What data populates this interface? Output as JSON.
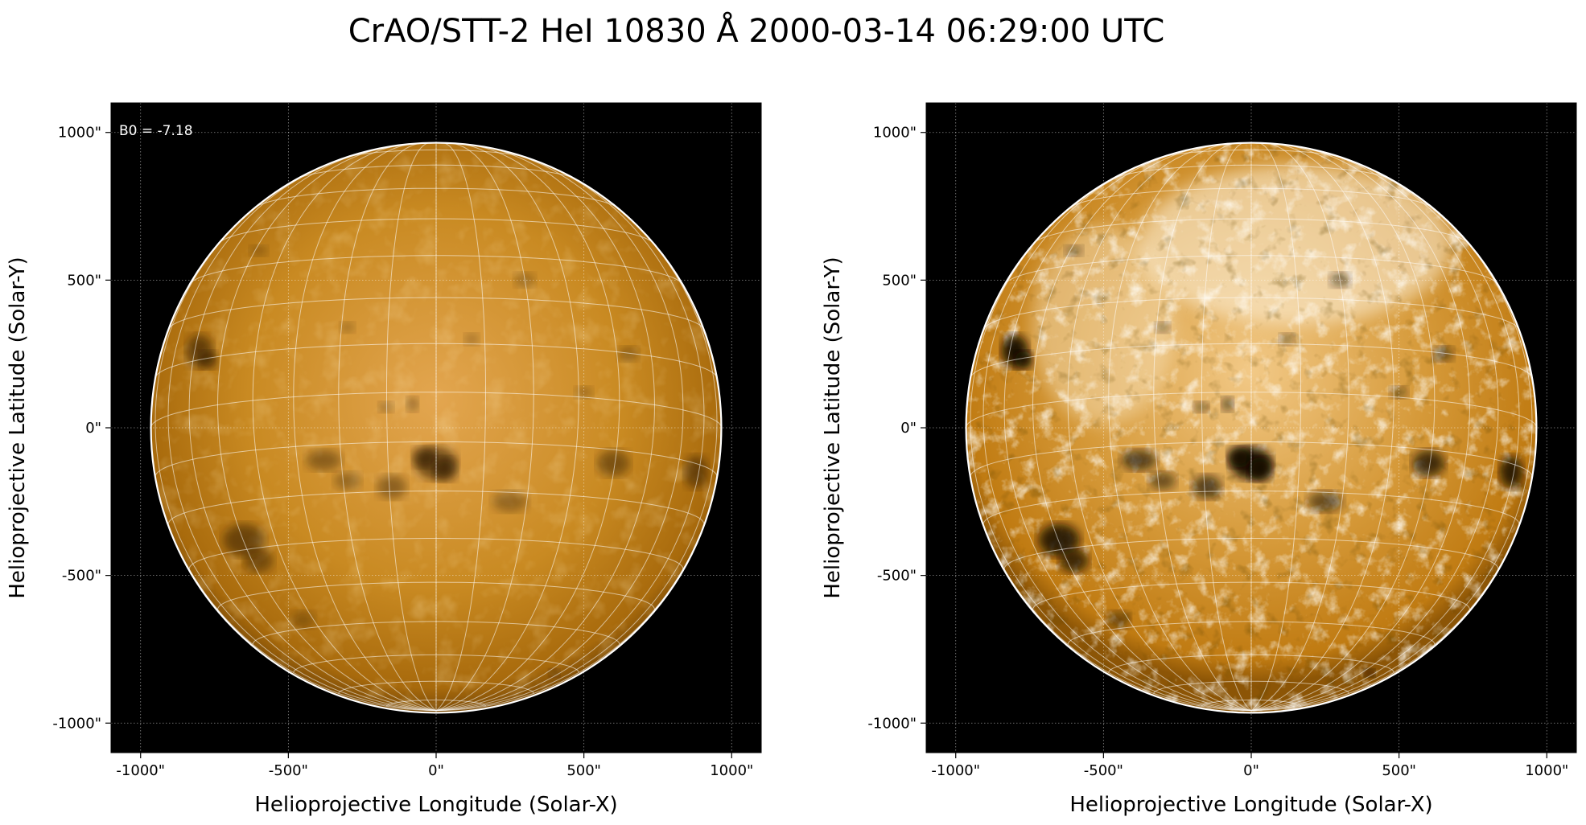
{
  "figure": {
    "title": "CrAO/STT-2 HeI 10830 Å 2000-03-14 06:29:00 UTC"
  },
  "chart_data": [
    {
      "type": "heatmap",
      "description": "Full-disk solar image, linear stretch",
      "xlabel": "Helioprojective Longitude (Solar-X)",
      "ylabel": "Helioprojective Latitude (Solar-Y)",
      "xlim": [
        -1100,
        1100
      ],
      "ylim": [
        -1100,
        1100
      ],
      "xticks": [
        -1000,
        -500,
        0,
        500,
        1000
      ],
      "yticks": [
        -1000,
        -500,
        0,
        500,
        1000
      ],
      "xtick_labels": [
        "-1000\"",
        "-500\"",
        "0\"",
        "500\"",
        "1000\""
      ],
      "ytick_labels": [
        "-1000\"",
        "-500\"",
        "0\"",
        "500\"",
        "1000\""
      ],
      "grid": true,
      "annotation": "B0 = -7.18",
      "solar_radius_arcsec": 965,
      "b0_deg": -7.18,
      "colormap": "gold/orange",
      "contrast": "low"
    },
    {
      "type": "heatmap",
      "description": "Full-disk solar image, enhanced contrast",
      "xlabel": "Helioprojective Longitude (Solar-X)",
      "ylabel": "Helioprojective Latitude (Solar-Y)",
      "xlim": [
        -1100,
        1100
      ],
      "ylim": [
        -1100,
        1100
      ],
      "xticks": [
        -1000,
        -500,
        0,
        500,
        1000
      ],
      "yticks": [
        -1000,
        -500,
        0,
        500,
        1000
      ],
      "xtick_labels": [
        "-1000\"",
        "-500\"",
        "0\"",
        "500\"",
        "1000\""
      ],
      "ytick_labels": [
        "-1000\"",
        "-500\"",
        "0\"",
        "500\"",
        "1000\""
      ],
      "grid": true,
      "annotation": "",
      "solar_radius_arcsec": 965,
      "b0_deg": -7.18,
      "colormap": "gold/orange",
      "contrast": "high"
    }
  ],
  "colors": {
    "background": "#000000",
    "disk_base": "#c07b12",
    "disk_light": "#e8b060",
    "disk_dark": "#2a1500",
    "grid_lines": "#ffffff",
    "limb": "#ffffff"
  }
}
